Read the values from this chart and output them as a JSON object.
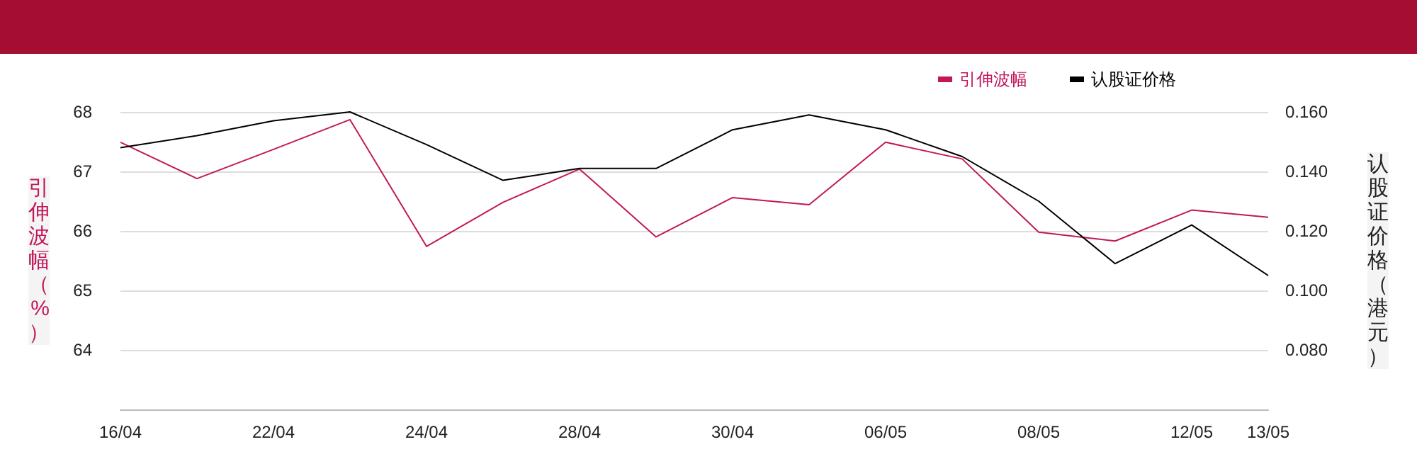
{
  "chart_data": {
    "type": "line",
    "ylabel": "引伸波幅（%）",
    "y2label": "认股证价格（港元）",
    "categories": [
      "16/04",
      null,
      "22/04",
      null,
      "24/04",
      null,
      "28/04",
      null,
      "30/04",
      null,
      "06/05",
      null,
      "08/05",
      null,
      "12/05",
      "13/05"
    ],
    "series": [
      {
        "name": "引伸波幅",
        "color": "#c2185b",
        "values": [
          67.49,
          66.88,
          67.37,
          67.87,
          65.74,
          66.48,
          67.04,
          65.9,
          66.56,
          66.44,
          67.49,
          67.21,
          65.98,
          65.83,
          66.35,
          66.23
        ]
      },
      {
        "name": "认股证价格",
        "color": "#000000",
        "axis": "y2",
        "values": [
          0.148,
          0.152,
          0.157,
          0.16,
          0.149,
          0.137,
          0.141,
          0.141,
          0.154,
          0.159,
          0.154,
          0.145,
          0.13,
          0.109,
          0.122,
          0.105
        ]
      }
    ],
    "ylim": [
      63,
      68
    ],
    "yticks": [
      64,
      65,
      66,
      67,
      68
    ],
    "y2lim": [
      0.06,
      0.16
    ],
    "y2ticks": [
      {
        "value": 0.08,
        "label": "0.080"
      },
      {
        "value": 0.1,
        "label": "0.100"
      },
      {
        "value": 0.12,
        "label": "0.120"
      },
      {
        "value": 0.14,
        "label": "0.140"
      },
      {
        "value": 0.16,
        "label": "0.160"
      }
    ],
    "grid": "y",
    "legend": "top right",
    "marker": "none",
    "line_style": "solid"
  }
}
